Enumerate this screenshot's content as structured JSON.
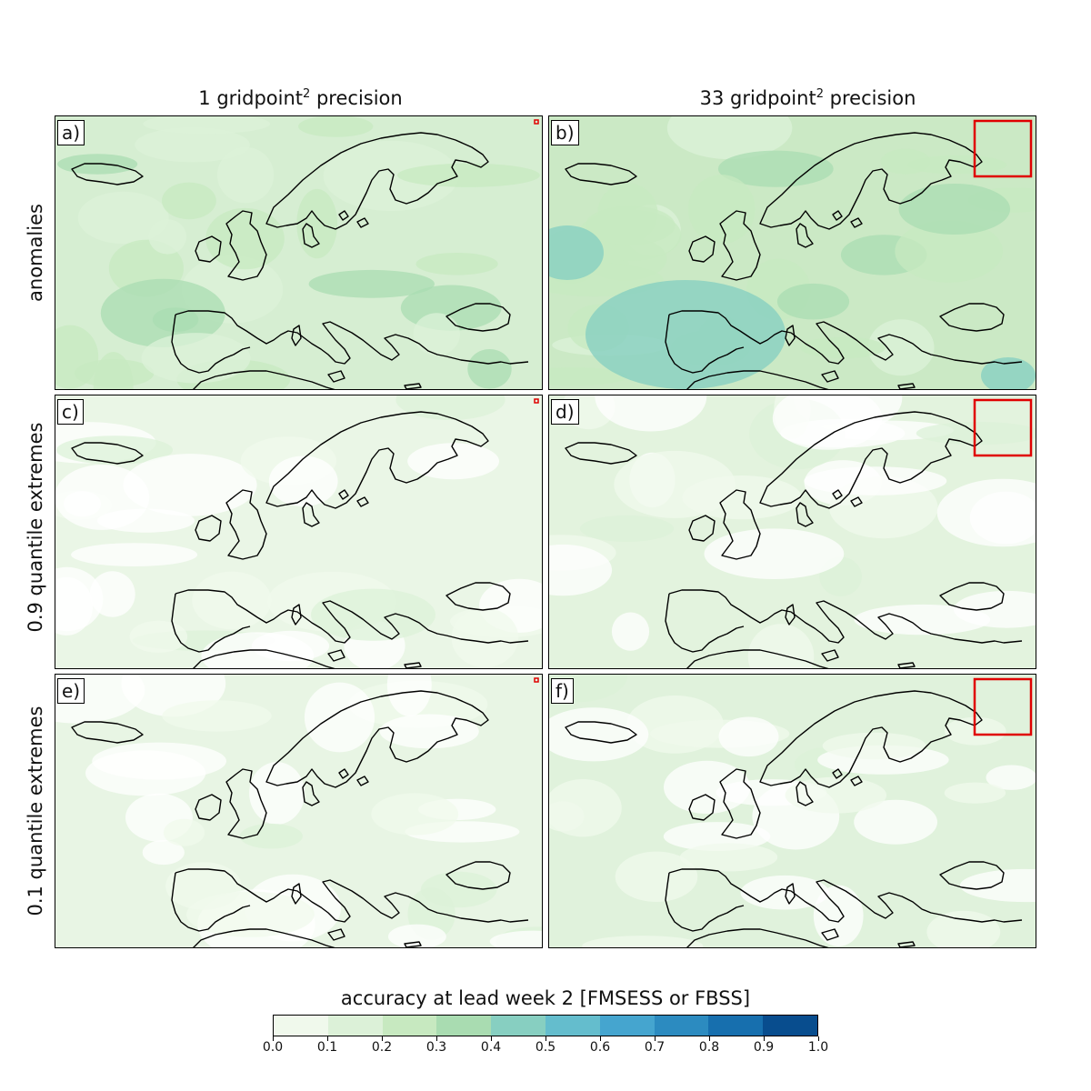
{
  "columns": [
    {
      "prefix": "1 gridpoint",
      "sup": "2",
      "suffix": " precision"
    },
    {
      "prefix": "33 gridpoint",
      "sup": "2",
      "suffix": " precision"
    }
  ],
  "rows": [
    "anomalies",
    "0.9 quantile extremes",
    "0.1 quantile extremes"
  ],
  "panels": [
    {
      "label": "a)",
      "base": "#d6eed2",
      "marker": "tiny"
    },
    {
      "label": "b)",
      "base": "#cbe9c5",
      "marker": "box"
    },
    {
      "label": "c)",
      "base": "#eaf6e6",
      "marker": "tiny"
    },
    {
      "label": "d)",
      "base": "#e3f3de",
      "marker": "box"
    },
    {
      "label": "e)",
      "base": "#e8f5e4",
      "marker": "tiny"
    },
    {
      "label": "f)",
      "base": "#e0f2dc",
      "marker": "box"
    }
  ],
  "colorbar": {
    "title": "accuracy at lead week 2 [FMSESS or FBSS]",
    "ticks": [
      "0.0",
      "0.1",
      "0.2",
      "0.3",
      "0.4",
      "0.5",
      "0.6",
      "0.7",
      "0.8",
      "0.9",
      "1.0"
    ],
    "colors": [
      "#f0f9ec",
      "#dcf1d8",
      "#c7e9c0",
      "#a9dcb1",
      "#87cfc1",
      "#64bdcd",
      "#45a5cf",
      "#2c8bc0",
      "#176fae",
      "#084d8e"
    ]
  }
}
